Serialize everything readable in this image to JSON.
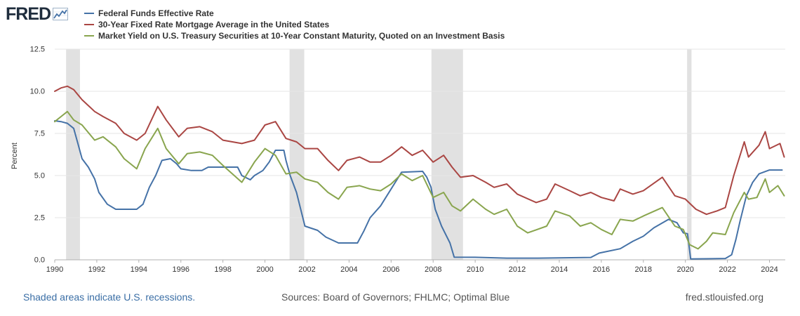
{
  "logo": {
    "text": "FRED"
  },
  "colors": {
    "fedfunds": "#4572a7",
    "mortgage": "#aa4643",
    "treasury": "#89a54e",
    "recession": "#e1e1e1",
    "grid": "#e6e6e6"
  },
  "footer": {
    "recession_note": "Shaded areas indicate U.S. recessions.",
    "sources": "Sources: Board of Governors; FHLMC; Optimal Blue",
    "site": "fred.stlouisfed.org"
  },
  "chart_data": {
    "type": "line",
    "title": "",
    "xlabel": "",
    "ylabel": "Percent",
    "xlim": [
      1990.0,
      2024.75
    ],
    "ylim": [
      0,
      12.5
    ],
    "yticks": [
      0.0,
      2.5,
      5.0,
      7.5,
      10.0,
      12.5
    ],
    "ytick_labels": [
      "0.0",
      "2.5",
      "5.0",
      "7.5",
      "10.0",
      "12.5"
    ],
    "xticks": [
      1990,
      1992,
      1994,
      1996,
      1998,
      2000,
      2002,
      2004,
      2006,
      2008,
      2010,
      2012,
      2014,
      2016,
      2018,
      2020,
      2022,
      2024
    ],
    "xtick_labels": [
      "1990",
      "1992",
      "1994",
      "1996",
      "1998",
      "2000",
      "2002",
      "2004",
      "2006",
      "2008",
      "2010",
      "2012",
      "2014",
      "2016",
      "2018",
      "2020",
      "2022",
      "2024"
    ],
    "grid": true,
    "recessions": [
      [
        1990.54,
        1991.2
      ],
      [
        2001.17,
        2001.87
      ],
      [
        2007.92,
        2009.42
      ],
      [
        2020.08,
        2020.29
      ]
    ],
    "series": [
      {
        "name": "Federal Funds Effective Rate",
        "key": "fedfunds",
        "x": [
          1990.0,
          1990.3,
          1990.6,
          1990.9,
          1991.1,
          1991.3,
          1991.6,
          1991.9,
          1992.1,
          1992.5,
          1992.9,
          1993.5,
          1993.9,
          1994.2,
          1994.5,
          1994.8,
          1995.1,
          1995.5,
          1995.8,
          1996.0,
          1996.5,
          1997.0,
          1997.3,
          1997.8,
          1998.2,
          1998.7,
          1998.9,
          1999.3,
          1999.5,
          1999.9,
          2000.2,
          2000.5,
          2000.9,
          2001.0,
          2001.2,
          2001.5,
          2001.7,
          2001.9,
          2002.5,
          2002.9,
          2003.5,
          2004.4,
          2004.7,
          2005.0,
          2005.5,
          2006.0,
          2006.5,
          2007.5,
          2007.7,
          2007.9,
          2008.1,
          2008.4,
          2008.8,
          2009.0,
          2010.0,
          2011.5,
          2013.0,
          2015.5,
          2015.9,
          2016.9,
          2017.5,
          2018.0,
          2018.5,
          2019.2,
          2019.6,
          2019.9,
          2020.1,
          2020.25,
          2021.9,
          2022.2,
          2022.4,
          2022.6,
          2022.9,
          2023.2,
          2023.5,
          2024.0,
          2024.6
        ],
        "y": [
          8.25,
          8.2,
          8.1,
          7.8,
          6.9,
          6.0,
          5.5,
          4.8,
          4.0,
          3.3,
          3.0,
          3.0,
          3.0,
          3.3,
          4.3,
          5.0,
          5.9,
          6.0,
          5.7,
          5.4,
          5.3,
          5.3,
          5.5,
          5.5,
          5.5,
          5.5,
          5.0,
          4.75,
          5.0,
          5.3,
          5.8,
          6.5,
          6.5,
          5.9,
          5.0,
          4.0,
          3.0,
          2.0,
          1.75,
          1.35,
          1.0,
          1.0,
          1.7,
          2.5,
          3.2,
          4.2,
          5.2,
          5.25,
          4.9,
          4.3,
          3.0,
          2.0,
          1.0,
          0.16,
          0.15,
          0.1,
          0.1,
          0.14,
          0.4,
          0.66,
          1.1,
          1.4,
          1.9,
          2.4,
          2.2,
          1.6,
          1.55,
          0.05,
          0.08,
          0.3,
          1.2,
          2.3,
          3.8,
          4.6,
          5.1,
          5.33,
          5.33
        ]
      },
      {
        "name": "30-Year Fixed Rate Mortgage Average in the United States",
        "key": "mortgage",
        "x": [
          1990.0,
          1990.3,
          1990.6,
          1990.9,
          1991.3,
          1991.9,
          1992.3,
          1992.9,
          1993.3,
          1993.9,
          1994.3,
          1994.9,
          1995.3,
          1995.9,
          1996.3,
          1996.9,
          1997.5,
          1998.0,
          1998.9,
          1999.5,
          2000.0,
          2000.5,
          2001.0,
          2001.5,
          2001.9,
          2002.5,
          2003.0,
          2003.5,
          2003.9,
          2004.5,
          2005.0,
          2005.5,
          2006.0,
          2006.5,
          2007.0,
          2007.5,
          2008.0,
          2008.5,
          2008.9,
          2009.3,
          2009.9,
          2010.5,
          2010.9,
          2011.5,
          2012.0,
          2012.9,
          2013.4,
          2013.8,
          2014.5,
          2015.0,
          2015.5,
          2016.0,
          2016.6,
          2016.9,
          2017.5,
          2018.0,
          2018.9,
          2019.5,
          2020.0,
          2020.5,
          2021.0,
          2021.5,
          2021.9,
          2022.3,
          2022.8,
          2023.0,
          2023.5,
          2023.8,
          2024.0,
          2024.5,
          2024.7
        ],
        "y": [
          10.0,
          10.2,
          10.3,
          10.1,
          9.5,
          8.8,
          8.5,
          8.1,
          7.5,
          7.1,
          7.5,
          9.1,
          8.3,
          7.3,
          7.8,
          7.9,
          7.6,
          7.1,
          6.9,
          7.1,
          8.0,
          8.2,
          7.2,
          7.0,
          6.6,
          6.6,
          5.9,
          5.3,
          5.9,
          6.1,
          5.8,
          5.8,
          6.2,
          6.7,
          6.2,
          6.5,
          5.8,
          6.2,
          5.5,
          4.9,
          5.0,
          4.6,
          4.3,
          4.5,
          3.9,
          3.4,
          3.6,
          4.5,
          4.1,
          3.8,
          4.0,
          3.7,
          3.5,
          4.2,
          3.9,
          4.1,
          4.9,
          3.8,
          3.6,
          3.0,
          2.7,
          2.9,
          3.1,
          5.0,
          7.0,
          6.1,
          6.8,
          7.6,
          6.6,
          6.9,
          6.1
        ]
      },
      {
        "name": "Market Yield on U.S. Treasury Securities at 10-Year Constant Maturity, Quoted on an Investment Basis",
        "key": "treasury",
        "x": [
          1990.0,
          1990.3,
          1990.6,
          1990.9,
          1991.3,
          1991.9,
          1992.3,
          1992.9,
          1993.3,
          1993.9,
          1994.3,
          1994.9,
          1995.3,
          1995.9,
          1996.3,
          1996.9,
          1997.5,
          1998.0,
          1998.9,
          1999.5,
          2000.0,
          2000.5,
          2001.0,
          2001.5,
          2001.9,
          2002.5,
          2003.0,
          2003.5,
          2003.9,
          2004.5,
          2005.0,
          2005.5,
          2006.0,
          2006.5,
          2007.0,
          2007.5,
          2008.0,
          2008.5,
          2008.9,
          2009.3,
          2009.9,
          2010.5,
          2010.9,
          2011.5,
          2012.0,
          2012.5,
          2013.4,
          2013.8,
          2014.5,
          2015.0,
          2015.5,
          2016.0,
          2016.5,
          2016.9,
          2017.5,
          2018.0,
          2018.9,
          2019.5,
          2019.9,
          2020.2,
          2020.6,
          2021.0,
          2021.3,
          2021.9,
          2022.3,
          2022.8,
          2023.0,
          2023.4,
          2023.8,
          2024.0,
          2024.4,
          2024.7
        ],
        "y": [
          8.2,
          8.5,
          8.8,
          8.3,
          8.0,
          7.1,
          7.3,
          6.7,
          6.0,
          5.4,
          6.6,
          7.8,
          6.6,
          5.7,
          6.3,
          6.4,
          6.2,
          5.6,
          4.6,
          5.8,
          6.6,
          6.2,
          5.1,
          5.2,
          4.8,
          4.6,
          4.0,
          3.6,
          4.3,
          4.4,
          4.2,
          4.1,
          4.5,
          5.1,
          4.7,
          5.0,
          3.7,
          4.0,
          3.2,
          2.9,
          3.6,
          3.0,
          2.7,
          3.0,
          2.0,
          1.6,
          2.0,
          2.9,
          2.6,
          2.0,
          2.2,
          1.8,
          1.5,
          2.4,
          2.3,
          2.6,
          3.1,
          2.0,
          1.8,
          0.9,
          0.65,
          1.1,
          1.6,
          1.5,
          2.8,
          4.0,
          3.6,
          3.7,
          4.8,
          4.0,
          4.4,
          3.8
        ]
      }
    ]
  }
}
